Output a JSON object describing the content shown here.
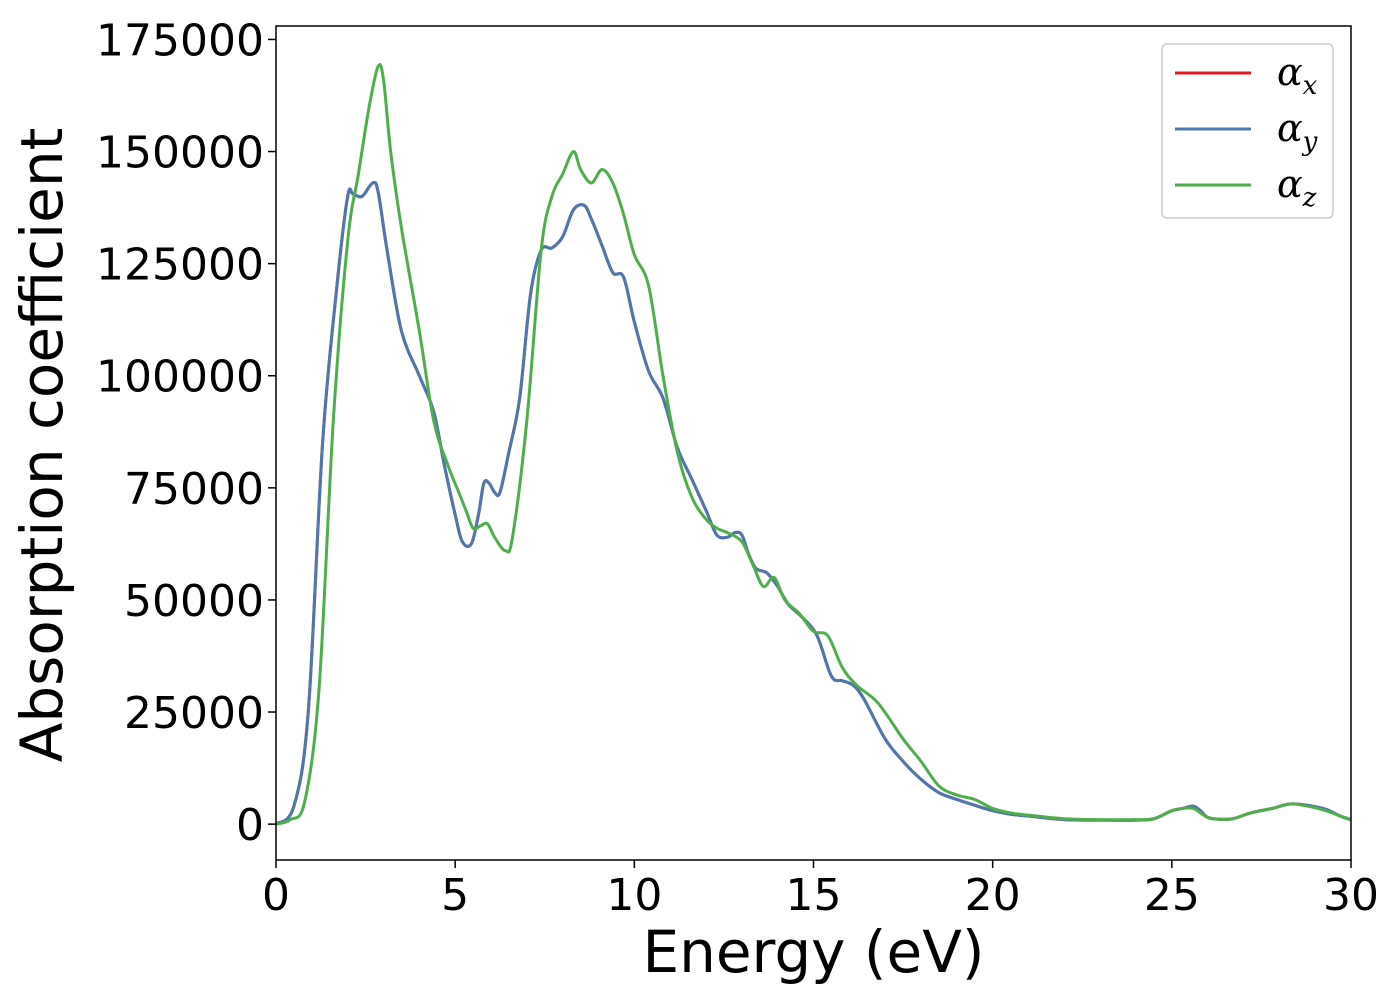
{
  "chart_data": {
    "type": "line",
    "title": "",
    "xlabel": "Energy (eV)",
    "ylabel": "Absorption coefficient",
    "xlim": [
      0,
      30
    ],
    "ylim": [
      -8000,
      178000
    ],
    "xticks": [
      0,
      5,
      10,
      15,
      20,
      25,
      30
    ],
    "xtick_labels": [
      "0",
      "5",
      "10",
      "15",
      "20",
      "25",
      "30"
    ],
    "yticks": [
      0,
      25000,
      50000,
      75000,
      100000,
      125000,
      150000,
      175000
    ],
    "ytick_labels": [
      "0",
      "25000",
      "50000",
      "75000",
      "100000",
      "125000",
      "150000",
      "175000"
    ],
    "grid": false,
    "legend_position": "top-right",
    "series": [
      {
        "name": "α",
        "subscript": "x",
        "color": "#e41a1c",
        "x": [
          0,
          0.5,
          0.9,
          1.3,
          1.7,
          2.0,
          2.15,
          2.4,
          2.7,
          2.85,
          3.1,
          3.5,
          4.0,
          4.4,
          4.7,
          5.0,
          5.2,
          5.45,
          5.65,
          5.8,
          5.95,
          6.1,
          6.25,
          6.5,
          6.8,
          7.1,
          7.4,
          7.7,
          8.0,
          8.3,
          8.6,
          8.8,
          9.1,
          9.4,
          9.7,
          10.0,
          10.4,
          10.8,
          11.2,
          11.6,
          12.0,
          12.3,
          12.6,
          12.8,
          13.0,
          13.2,
          13.4,
          13.7,
          14.0,
          14.3,
          14.7,
          15.1,
          15.5,
          15.8,
          16.1,
          16.4,
          17.0,
          17.5,
          18.0,
          18.5,
          19.0,
          19.5,
          20.0,
          20.5,
          21.0,
          22.0,
          23.0,
          24.0,
          24.5,
          25.0,
          25.3,
          25.6,
          25.8,
          26.0,
          26.3,
          26.7,
          27.2,
          27.8,
          28.3,
          28.8,
          29.3,
          29.7,
          30.0
        ],
        "values": [
          0,
          4000,
          25000,
          85000,
          120000,
          140000,
          140500,
          140000,
          143000,
          141000,
          128000,
          110000,
          100000,
          92000,
          80000,
          69000,
          63000,
          62500,
          69000,
          76000,
          76000,
          74000,
          74000,
          83000,
          95000,
          118000,
          128000,
          128500,
          131000,
          137000,
          138000,
          135000,
          129000,
          123000,
          122000,
          112000,
          101000,
          95000,
          84000,
          77000,
          70000,
          64500,
          64000,
          65000,
          64500,
          60000,
          57000,
          56000,
          53000,
          49000,
          46000,
          42000,
          33000,
          32000,
          31000,
          28000,
          19000,
          14000,
          10000,
          7000,
          5500,
          4200,
          3000,
          2200,
          1800,
          1000,
          900,
          900,
          1200,
          3000,
          3500,
          4000,
          3000,
          1500,
          1100,
          1200,
          2500,
          3500,
          4500,
          4200,
          3300,
          1800,
          1000
        ]
      },
      {
        "name": "α",
        "subscript": "y",
        "color": "#4a78b0",
        "x": [
          0,
          0.5,
          0.9,
          1.3,
          1.7,
          2.0,
          2.15,
          2.4,
          2.7,
          2.85,
          3.1,
          3.5,
          4.0,
          4.4,
          4.7,
          5.0,
          5.2,
          5.45,
          5.65,
          5.8,
          5.95,
          6.1,
          6.25,
          6.5,
          6.8,
          7.1,
          7.4,
          7.7,
          8.0,
          8.3,
          8.6,
          8.8,
          9.1,
          9.4,
          9.7,
          10.0,
          10.4,
          10.8,
          11.2,
          11.6,
          12.0,
          12.3,
          12.6,
          12.8,
          13.0,
          13.2,
          13.4,
          13.7,
          14.0,
          14.3,
          14.7,
          15.1,
          15.5,
          15.8,
          16.1,
          16.4,
          17.0,
          17.5,
          18.0,
          18.5,
          19.0,
          19.5,
          20.0,
          20.5,
          21.0,
          22.0,
          23.0,
          24.0,
          24.5,
          25.0,
          25.3,
          25.6,
          25.8,
          26.0,
          26.3,
          26.7,
          27.2,
          27.8,
          28.3,
          28.8,
          29.3,
          29.7,
          30.0
        ],
        "values": [
          0,
          4000,
          25000,
          85000,
          120000,
          140000,
          140500,
          140000,
          143000,
          141000,
          128000,
          110000,
          100000,
          92000,
          80000,
          69000,
          63000,
          62500,
          69000,
          76000,
          76000,
          74000,
          74000,
          83000,
          95000,
          118000,
          128000,
          128500,
          131000,
          137000,
          138000,
          135000,
          129000,
          123000,
          122000,
          112000,
          101000,
          95000,
          84000,
          77000,
          70000,
          64500,
          64000,
          65000,
          64500,
          60000,
          57000,
          56000,
          53000,
          49000,
          46000,
          42000,
          33000,
          32000,
          31000,
          28000,
          19000,
          14000,
          10000,
          7000,
          5500,
          4200,
          3000,
          2200,
          1800,
          1000,
          900,
          900,
          1200,
          3000,
          3500,
          4000,
          3000,
          1500,
          1100,
          1200,
          2500,
          3500,
          4500,
          4200,
          3300,
          1800,
          1000
        ]
      },
      {
        "name": "α",
        "subscript": "z",
        "color": "#4daf4a",
        "x": [
          0,
          0.4,
          0.8,
          1.2,
          1.6,
          2.0,
          2.3,
          2.6,
          2.85,
          3.0,
          3.2,
          3.5,
          4.0,
          4.4,
          4.8,
          5.1,
          5.3,
          5.5,
          5.7,
          5.9,
          6.1,
          6.4,
          6.6,
          7.0,
          7.4,
          7.7,
          8.0,
          8.3,
          8.5,
          8.8,
          9.1,
          9.4,
          9.7,
          10.0,
          10.4,
          10.8,
          11.2,
          11.6,
          12.0,
          12.3,
          12.6,
          13.0,
          13.3,
          13.6,
          13.9,
          14.2,
          14.6,
          15.0,
          15.4,
          15.8,
          16.2,
          16.8,
          17.5,
          18.0,
          18.5,
          19.0,
          19.5,
          20.0,
          20.5,
          21.0,
          22.0,
          23.0,
          24.0,
          24.5,
          25.0,
          25.3,
          25.6,
          25.8,
          26.0,
          26.3,
          26.7,
          27.2,
          27.8,
          28.3,
          28.8,
          29.3,
          29.7,
          30.0
        ],
        "values": [
          0,
          1000,
          5000,
          30000,
          90000,
          130000,
          145000,
          160000,
          169000,
          166000,
          150000,
          133000,
          110000,
          90000,
          80000,
          74000,
          70000,
          66000,
          66500,
          67000,
          64000,
          61000,
          64000,
          90000,
          128000,
          140000,
          145000,
          150000,
          146000,
          143000,
          146000,
          143000,
          136000,
          127000,
          120000,
          100000,
          83000,
          73000,
          68000,
          66000,
          65000,
          63000,
          58000,
          53000,
          55000,
          50000,
          47000,
          43000,
          42000,
          35000,
          31000,
          27000,
          19000,
          14000,
          8500,
          6500,
          5500,
          3500,
          2500,
          2000,
          1200,
          1000,
          1000,
          1200,
          3000,
          3500,
          3500,
          2500,
          1500,
          1100,
          1200,
          2500,
          3500,
          4500,
          4000,
          3000,
          1800,
          1000
        ]
      }
    ]
  }
}
